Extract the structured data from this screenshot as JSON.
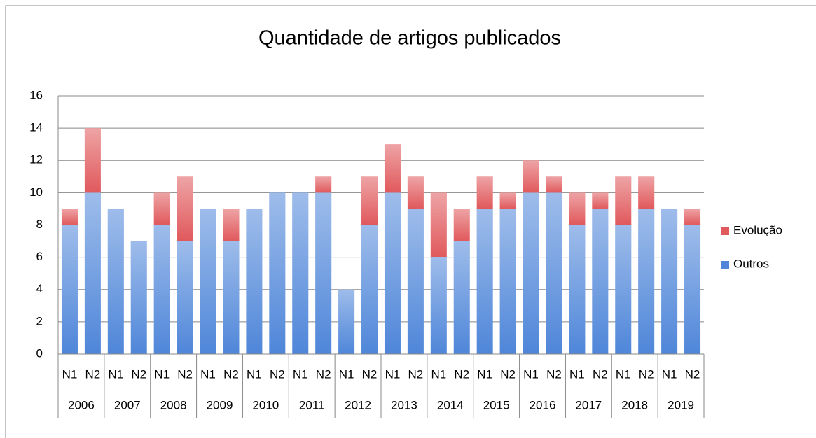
{
  "chart_data": {
    "type": "bar",
    "stacked": true,
    "title": "Quantidade de artigos publicados",
    "categories": [
      "N1",
      "N2",
      "N1",
      "N2",
      "N1",
      "N2",
      "N1",
      "N2",
      "N1",
      "N2",
      "N1",
      "N2",
      "N1",
      "N2",
      "N1",
      "N2",
      "N1",
      "N2",
      "N1",
      "N2",
      "N1",
      "N2",
      "N1",
      "N2",
      "N1",
      "N2",
      "N1",
      "N2"
    ],
    "groups": [
      "2006",
      "2007",
      "2008",
      "2009",
      "2010",
      "2011",
      "2012",
      "2013",
      "2014",
      "2015",
      "2016",
      "2017",
      "2018",
      "2019"
    ],
    "series": [
      {
        "name": "Outros",
        "color": "#4f86d9",
        "values": [
          8,
          10,
          9,
          7,
          8,
          7,
          9,
          7,
          9,
          10,
          10,
          10,
          4,
          8,
          10,
          9,
          6,
          7,
          9,
          9,
          10,
          10,
          8,
          9,
          8,
          9,
          9,
          8
        ]
      },
      {
        "name": "Evolução",
        "color": "#e0595c",
        "values": [
          1,
          4,
          0,
          0,
          2,
          4,
          0,
          2,
          0,
          0,
          0,
          1,
          0,
          3,
          3,
          2,
          4,
          2,
          2,
          1,
          2,
          1,
          2,
          1,
          3,
          2,
          0,
          1
        ]
      }
    ],
    "ylim": [
      0,
      16
    ],
    "yticks": [
      0,
      2,
      4,
      6,
      8,
      10,
      12,
      14,
      16
    ],
    "grid": true,
    "legend": "right"
  }
}
